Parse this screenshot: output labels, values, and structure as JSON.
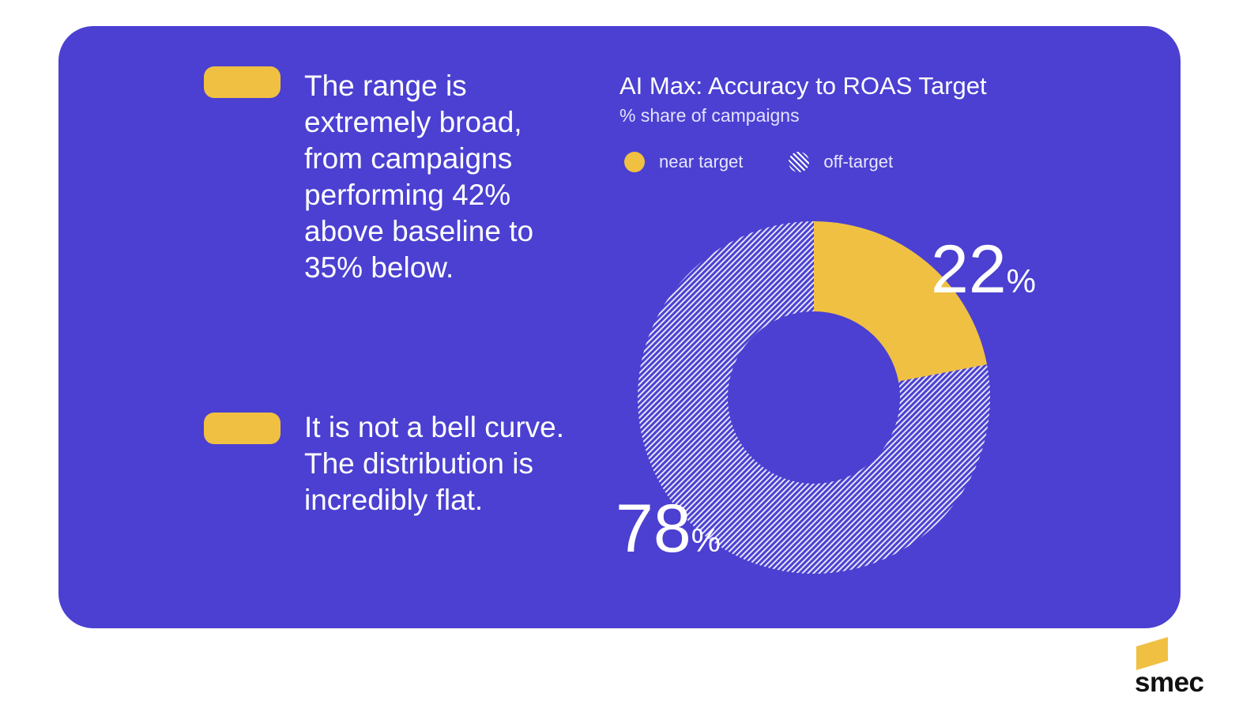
{
  "bullets": [
    {
      "plain": "The range is extremely broad, from campaigns performing ",
      "bold": "42% above baseline to 35% below.",
      "tail": ""
    },
    {
      "plain": "",
      "bold": "It is not a bell curve.",
      "tail": " The distribution is incredibly flat."
    }
  ],
  "chart_data": {
    "type": "pie",
    "title": "AI Max: Accuracy to ROAS Target",
    "subtitle": "% share of campaigns",
    "categories": [
      "near target",
      "off-target"
    ],
    "values": [
      22,
      78
    ],
    "value_labels": [
      "22",
      "78"
    ],
    "unit": "%",
    "legend": "top",
    "colors": {
      "near target": "#f0c043",
      "off-target": "#ffffff"
    }
  },
  "brand": {
    "name": "smec"
  },
  "colors": {
    "card": "#4b40d1",
    "accent": "#f0c043"
  }
}
